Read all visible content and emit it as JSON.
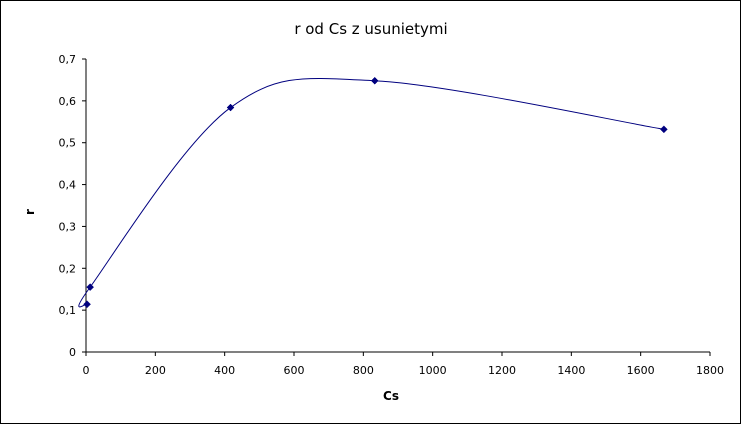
{
  "chart_data": {
    "type": "scatter",
    "title": "r od Cs z usunietymi",
    "xlabel": "Cs",
    "ylabel": "r",
    "xlim": [
      0,
      1800
    ],
    "ylim": [
      0,
      0.7
    ],
    "x_ticks": [
      0,
      200,
      400,
      600,
      800,
      1000,
      1200,
      1400,
      1600,
      1800
    ],
    "x_tick_labels": [
      "0",
      "200",
      "400",
      "600",
      "800",
      "1000",
      "1200",
      "1400",
      "1600",
      "1800"
    ],
    "y_ticks": [
      0,
      0.1,
      0.2,
      0.3,
      0.4,
      0.5,
      0.6,
      0.7
    ],
    "y_tick_labels": [
      "0",
      "0,1",
      "0,2",
      "0,3",
      "0,4",
      "0,5",
      "0,6",
      "0,7"
    ],
    "grid": false,
    "smooth_line": true,
    "marker": "diamond",
    "series": [
      {
        "color": "#00007f",
        "points": [
          {
            "x": 3,
            "y": 0.114
          },
          {
            "x": 12,
            "y": 0.155
          },
          {
            "x": 417,
            "y": 0.584
          },
          {
            "x": 833,
            "y": 0.648
          },
          {
            "x": 1667,
            "y": 0.532
          }
        ]
      }
    ]
  }
}
